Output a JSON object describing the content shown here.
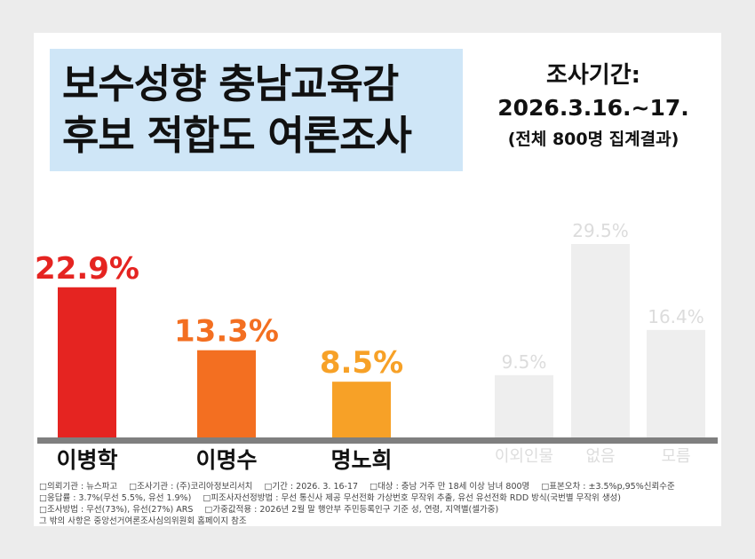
{
  "title": {
    "line1": "보수성향 충남교육감",
    "line2": "후보 적합도 여론조사"
  },
  "period": {
    "label": "조사기간:",
    "date": "2026.3.16.~17.",
    "note": "(전체 800명 집계결과)"
  },
  "chart_data": {
    "type": "bar",
    "categories": [
      "이병학",
      "이명수",
      "명노희",
      "이외인물",
      "없음",
      "모름"
    ],
    "values": [
      22.9,
      13.3,
      8.5,
      9.5,
      29.5,
      16.4
    ],
    "data_labels": [
      "22.9%",
      "13.3%",
      "8.5%",
      "9.5%",
      "29.5%",
      "16.4%"
    ],
    "colors": [
      "#e52421",
      "#f36f21",
      "#f7a127",
      "#eeeeee",
      "#eeeeee",
      "#eeeeee"
    ],
    "label_colors": [
      "#e52421",
      "#f36f21",
      "#f7a127",
      "#dcdcdc",
      "#dcdcdc",
      "#dcdcdc"
    ],
    "category_colors": [
      "#111111",
      "#111111",
      "#111111",
      "#dddddd",
      "#dddddd",
      "#dddddd"
    ],
    "ylim": [
      0,
      30
    ],
    "grid": false,
    "legend": "none"
  },
  "footnotes": {
    "line1": [
      "□의뢰기관 : 뉴스파고",
      "□조사기관 : (주)코리아정보리서치",
      "□기간 : 2026. 3. 16-17",
      "□대상 : 충남 거주 만 18세 이상 남녀 800명",
      "□표본오차 : ±3.5%p,95%신뢰수준"
    ],
    "line2": [
      "□응답률 : 3.7%(무선 5.5%, 유선 1.9%)",
      "□피조사자선정방법 : 무선 통신사 제공 무선전화 가상번호 무작위 추출, 유선 유선전화 RDD 방식(국번별 무작위 생성)"
    ],
    "line3": [
      "□조사방법 : 무선(73%), 유선(27%) ARS",
      "□가중값적용 : 2026년 2월 말 행안부 주민등록인구 기준 성, 연령, 지역별(셀가중)"
    ],
    "line4": [
      "그 밖의 사항은 중앙선거여론조사심의위원회 홈페이지 참조"
    ]
  }
}
